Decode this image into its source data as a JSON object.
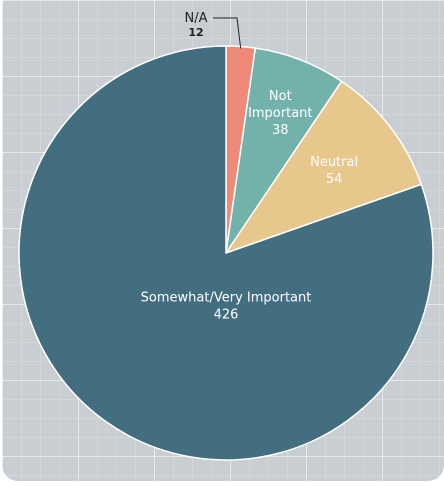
{
  "chart_data": {
    "type": "pie",
    "start_angle_deg": 0,
    "direction": "clockwise",
    "slices": [
      {
        "label": "N/A",
        "value": 12,
        "color": "#ef8a78",
        "label_style": "callout"
      },
      {
        "label": "Not Important",
        "label_lines": [
          "Not",
          "Important"
        ],
        "value": 38,
        "color": "#72b2aa",
        "label_style": "inside"
      },
      {
        "label": "Neutral",
        "label_lines": [
          "Neutral"
        ],
        "value": 54,
        "color": "#e8c78c",
        "label_style": "inside"
      },
      {
        "label": "Somewhat/Very Important",
        "label_lines": [
          "Somewhat/Very Important"
        ],
        "value": 426,
        "color": "#436e80",
        "label_style": "inside"
      }
    ],
    "background_color": "#c9ced3",
    "grid": true,
    "legend": "none"
  }
}
